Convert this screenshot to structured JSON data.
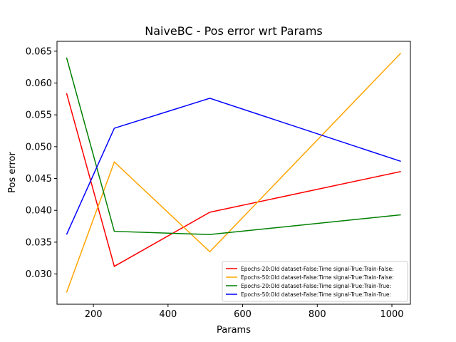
{
  "chart_data": {
    "type": "line",
    "title": "NaiveBC - Pos error wrt Params",
    "xlabel": "Params",
    "ylabel": "Pos error",
    "x": [
      128,
      256,
      512,
      1024
    ],
    "xlim": [
      102.4,
      1049.6
    ],
    "ylim": [
      0.02525,
      0.06655
    ],
    "xticks": [
      200,
      400,
      600,
      800,
      1000
    ],
    "xtick_labels": [
      "200",
      "400",
      "600",
      "800",
      "1000"
    ],
    "yticks": [
      0.03,
      0.035,
      0.04,
      0.045,
      0.05,
      0.055,
      0.06,
      0.065
    ],
    "ytick_labels": [
      "0.030",
      "0.035",
      "0.040",
      "0.045",
      "0.050",
      "0.055",
      "0.060",
      "0.065"
    ],
    "grid": false,
    "legend_position": "lower-right",
    "series": [
      {
        "name": "Epochs-20:Old dataset-False:Time signal-True:Train-False:",
        "color": "#ff0000",
        "values": [
          0.0584,
          0.0312,
          0.0397,
          0.0461
        ]
      },
      {
        "name": "Epochs-50:Old dataset-False:Time signal-True:Train-False:",
        "color": "#ffa500",
        "values": [
          0.0271,
          0.0476,
          0.0335,
          0.0647
        ]
      },
      {
        "name": "Epochs-20:Old dataset-False:Time signal-True:Train-True:",
        "color": "#008000",
        "values": [
          0.064,
          0.0367,
          0.0362,
          0.0393
        ]
      },
      {
        "name": "Epochs-50:Old dataset-False:Time signal-True:Train-True:",
        "color": "#0000ff",
        "values": [
          0.0362,
          0.0529,
          0.0576,
          0.0477
        ]
      }
    ]
  }
}
